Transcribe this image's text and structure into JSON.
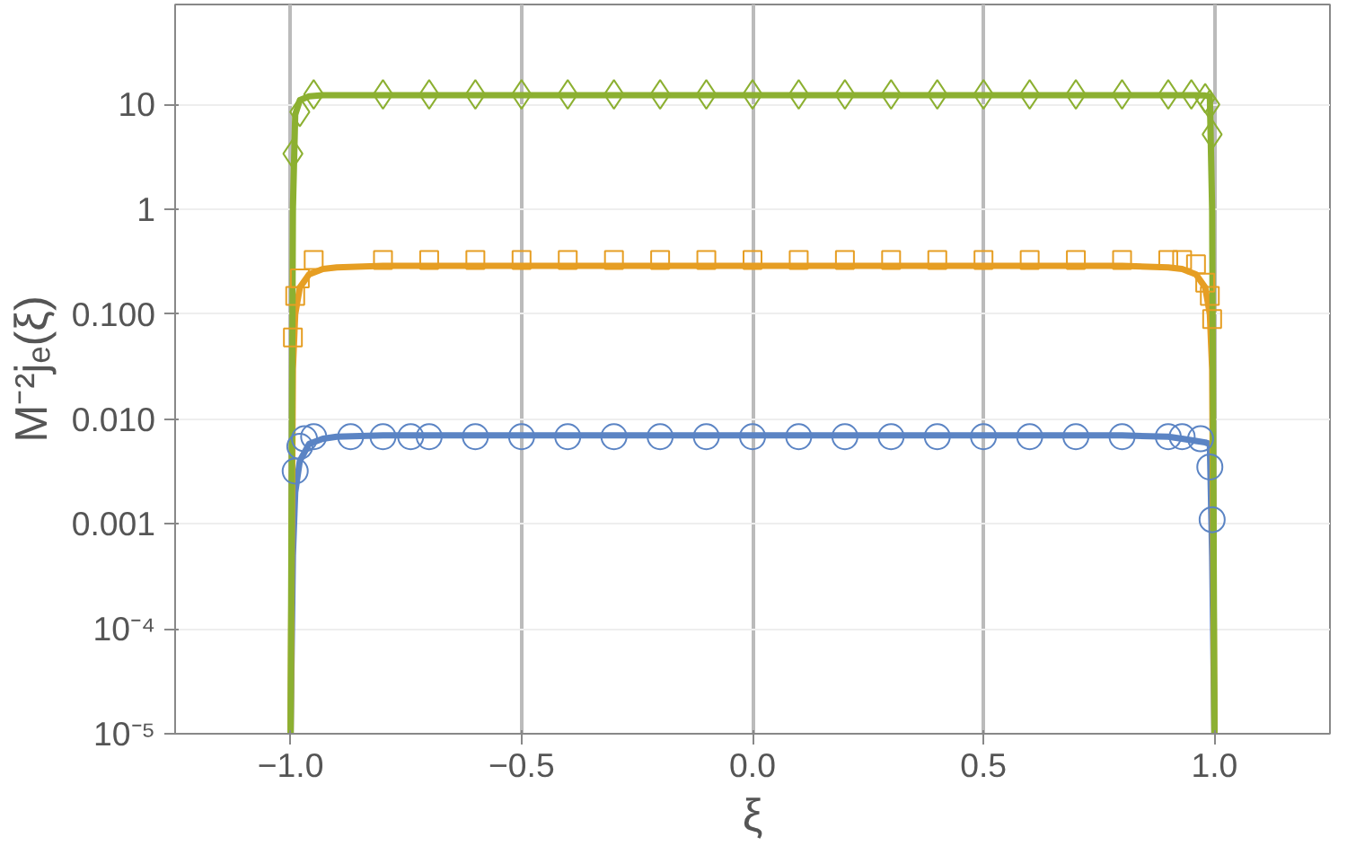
{
  "chart_data": {
    "type": "line",
    "xlabel": "ξ",
    "ylabel": "M⁻²jₑ(ξ)",
    "log": "y",
    "grid": true,
    "marker": "none",
    "line_style": "solid",
    "xlim": [
      -1.25,
      1.25
    ],
    "ylim": [
      1e-05,
      90
    ],
    "xticks": [
      {
        "value": -1,
        "label": "−1.0"
      },
      {
        "value": -0.5,
        "label": "−0.5"
      },
      {
        "value": 0,
        "label": "0.0"
      },
      {
        "value": 0.5,
        "label": "0.5"
      },
      {
        "value": 1,
        "label": "1.0"
      }
    ],
    "yticks": [
      {
        "value": 1e-05,
        "label": "10⁻⁵"
      },
      {
        "value": 0.0001,
        "label": "10⁻⁴"
      },
      {
        "value": 0.001,
        "label": "0.001"
      },
      {
        "value": 0.01,
        "label": "0.010"
      },
      {
        "value": 0.1,
        "label": "0.100"
      },
      {
        "value": 1,
        "label": "1"
      },
      {
        "value": 10,
        "label": "10"
      }
    ],
    "series": [
      {
        "color": "#5b84c4",
        "x": [
          -1,
          -0.995,
          -0.99,
          -0.98,
          -0.96,
          -0.93,
          -0.9,
          -0.8,
          0,
          0.8,
          0.9,
          0.93,
          0.96,
          0.98,
          0.99,
          0.995,
          1
        ],
        "values": [
          1e-05,
          0.0005,
          0.002,
          0.004,
          0.0058,
          0.0065,
          0.0068,
          0.007,
          0.007,
          0.007,
          0.0068,
          0.0065,
          0.0062,
          0.006,
          0.0058,
          0.0005,
          1e-05
        ]
      },
      {
        "color": "#e69e23",
        "x": [
          -1,
          -0.995,
          -0.99,
          -0.98,
          -0.96,
          -0.93,
          -0.9,
          -0.8,
          0,
          0.8,
          0.9,
          0.93,
          0.96,
          0.98,
          0.99,
          0.995,
          1
        ],
        "values": [
          1e-05,
          0.03,
          0.1,
          0.18,
          0.24,
          0.27,
          0.28,
          0.29,
          0.29,
          0.29,
          0.28,
          0.27,
          0.24,
          0.18,
          0.1,
          0.03,
          1e-05
        ]
      },
      {
        "color": "#8cb031",
        "x": [
          -1,
          -0.995,
          -0.99,
          -0.98,
          -0.96,
          -0.93,
          -0.9,
          -0.8,
          0,
          0.8,
          0.9,
          0.93,
          0.96,
          0.98,
          0.99,
          0.995,
          1
        ],
        "values": [
          1e-05,
          1,
          8,
          11,
          12,
          12.3,
          12.3,
          12.3,
          12.3,
          12.3,
          12.3,
          12.3,
          12.3,
          12.2,
          12,
          1,
          1e-05
        ]
      },
      {
        "type": "scatter",
        "marker": "circle",
        "color": "#5b84c4",
        "x": [
          -0.99,
          -0.98,
          -0.97,
          -0.95,
          -0.87,
          -0.8,
          -0.74,
          -0.7,
          -0.6,
          -0.5,
          -0.4,
          -0.3,
          -0.2,
          -0.1,
          0,
          0.1,
          0.2,
          0.3,
          0.4,
          0.5,
          0.6,
          0.7,
          0.8,
          0.9,
          0.93,
          0.97,
          0.99,
          0.995
        ],
        "values": [
          0.0032,
          0.0055,
          0.0065,
          0.0068,
          0.0068,
          0.0068,
          0.0068,
          0.0068,
          0.0068,
          0.0068,
          0.0068,
          0.0068,
          0.0068,
          0.0068,
          0.0068,
          0.0068,
          0.0068,
          0.0068,
          0.0068,
          0.0068,
          0.0068,
          0.0068,
          0.0068,
          0.0068,
          0.0068,
          0.0065,
          0.0035,
          0.0011
        ]
      },
      {
        "type": "scatter",
        "marker": "square",
        "color": "#e69e23",
        "x": [
          -0.995,
          -0.99,
          -0.98,
          -0.95,
          -0.8,
          -0.7,
          -0.6,
          -0.5,
          -0.4,
          -0.3,
          -0.2,
          -0.1,
          0,
          0.1,
          0.2,
          0.3,
          0.4,
          0.5,
          0.6,
          0.7,
          0.8,
          0.9,
          0.93,
          0.96,
          0.98,
          0.99,
          0.995
        ],
        "values": [
          0.06,
          0.15,
          0.22,
          0.33,
          0.33,
          0.33,
          0.33,
          0.33,
          0.33,
          0.33,
          0.33,
          0.33,
          0.33,
          0.33,
          0.33,
          0.33,
          0.33,
          0.33,
          0.33,
          0.33,
          0.33,
          0.33,
          0.33,
          0.3,
          0.2,
          0.15,
          0.09
        ]
      },
      {
        "type": "scatter",
        "marker": "diamond",
        "color": "#8cb031",
        "x": [
          -0.995,
          -0.98,
          -0.95,
          -0.8,
          -0.7,
          -0.6,
          -0.5,
          -0.4,
          -0.3,
          -0.2,
          -0.1,
          0,
          0.1,
          0.2,
          0.3,
          0.4,
          0.5,
          0.6,
          0.7,
          0.8,
          0.9,
          0.95,
          0.98,
          0.99,
          0.995
        ],
        "values": [
          3.4,
          8.5,
          12.5,
          12.5,
          12.5,
          12.5,
          12.5,
          12.5,
          12.5,
          12.5,
          12.5,
          12.5,
          12.5,
          12.5,
          12.5,
          12.5,
          12.5,
          12.5,
          12.5,
          12.5,
          12.5,
          12.5,
          11.5,
          10,
          5.2
        ]
      }
    ]
  }
}
